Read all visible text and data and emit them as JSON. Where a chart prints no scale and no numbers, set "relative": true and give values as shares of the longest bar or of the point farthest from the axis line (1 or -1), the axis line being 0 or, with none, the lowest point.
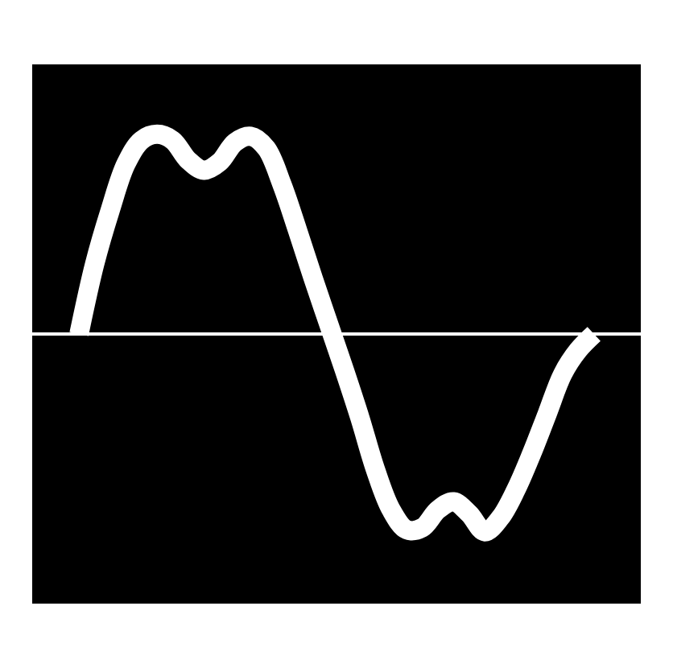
{
  "chart_data": {
    "type": "line",
    "relative": true,
    "color": "#ffffff",
    "categories": [
      null,
      null,
      null,
      null,
      null,
      null,
      null,
      null,
      null,
      null,
      null,
      null,
      null,
      null,
      null,
      null,
      null,
      null,
      null,
      null,
      null,
      null,
      null,
      null,
      null,
      null,
      null,
      null,
      null,
      null,
      null,
      null,
      null,
      null
    ],
    "values": [
      0,
      0.35,
      0.62,
      0.85,
      0.97,
      1.0,
      0.97,
      0.87,
      0.82,
      0.86,
      0.96,
      0.99,
      0.93,
      0.75,
      0.52,
      0.28,
      0.05,
      -0.18,
      -0.42,
      -0.68,
      -0.88,
      -0.98,
      -0.97,
      -0.88,
      -0.84,
      -0.9,
      -0.99,
      -0.92,
      -0.78,
      -0.6,
      -0.4,
      -0.2,
      -0.08,
      0
    ]
  }
}
